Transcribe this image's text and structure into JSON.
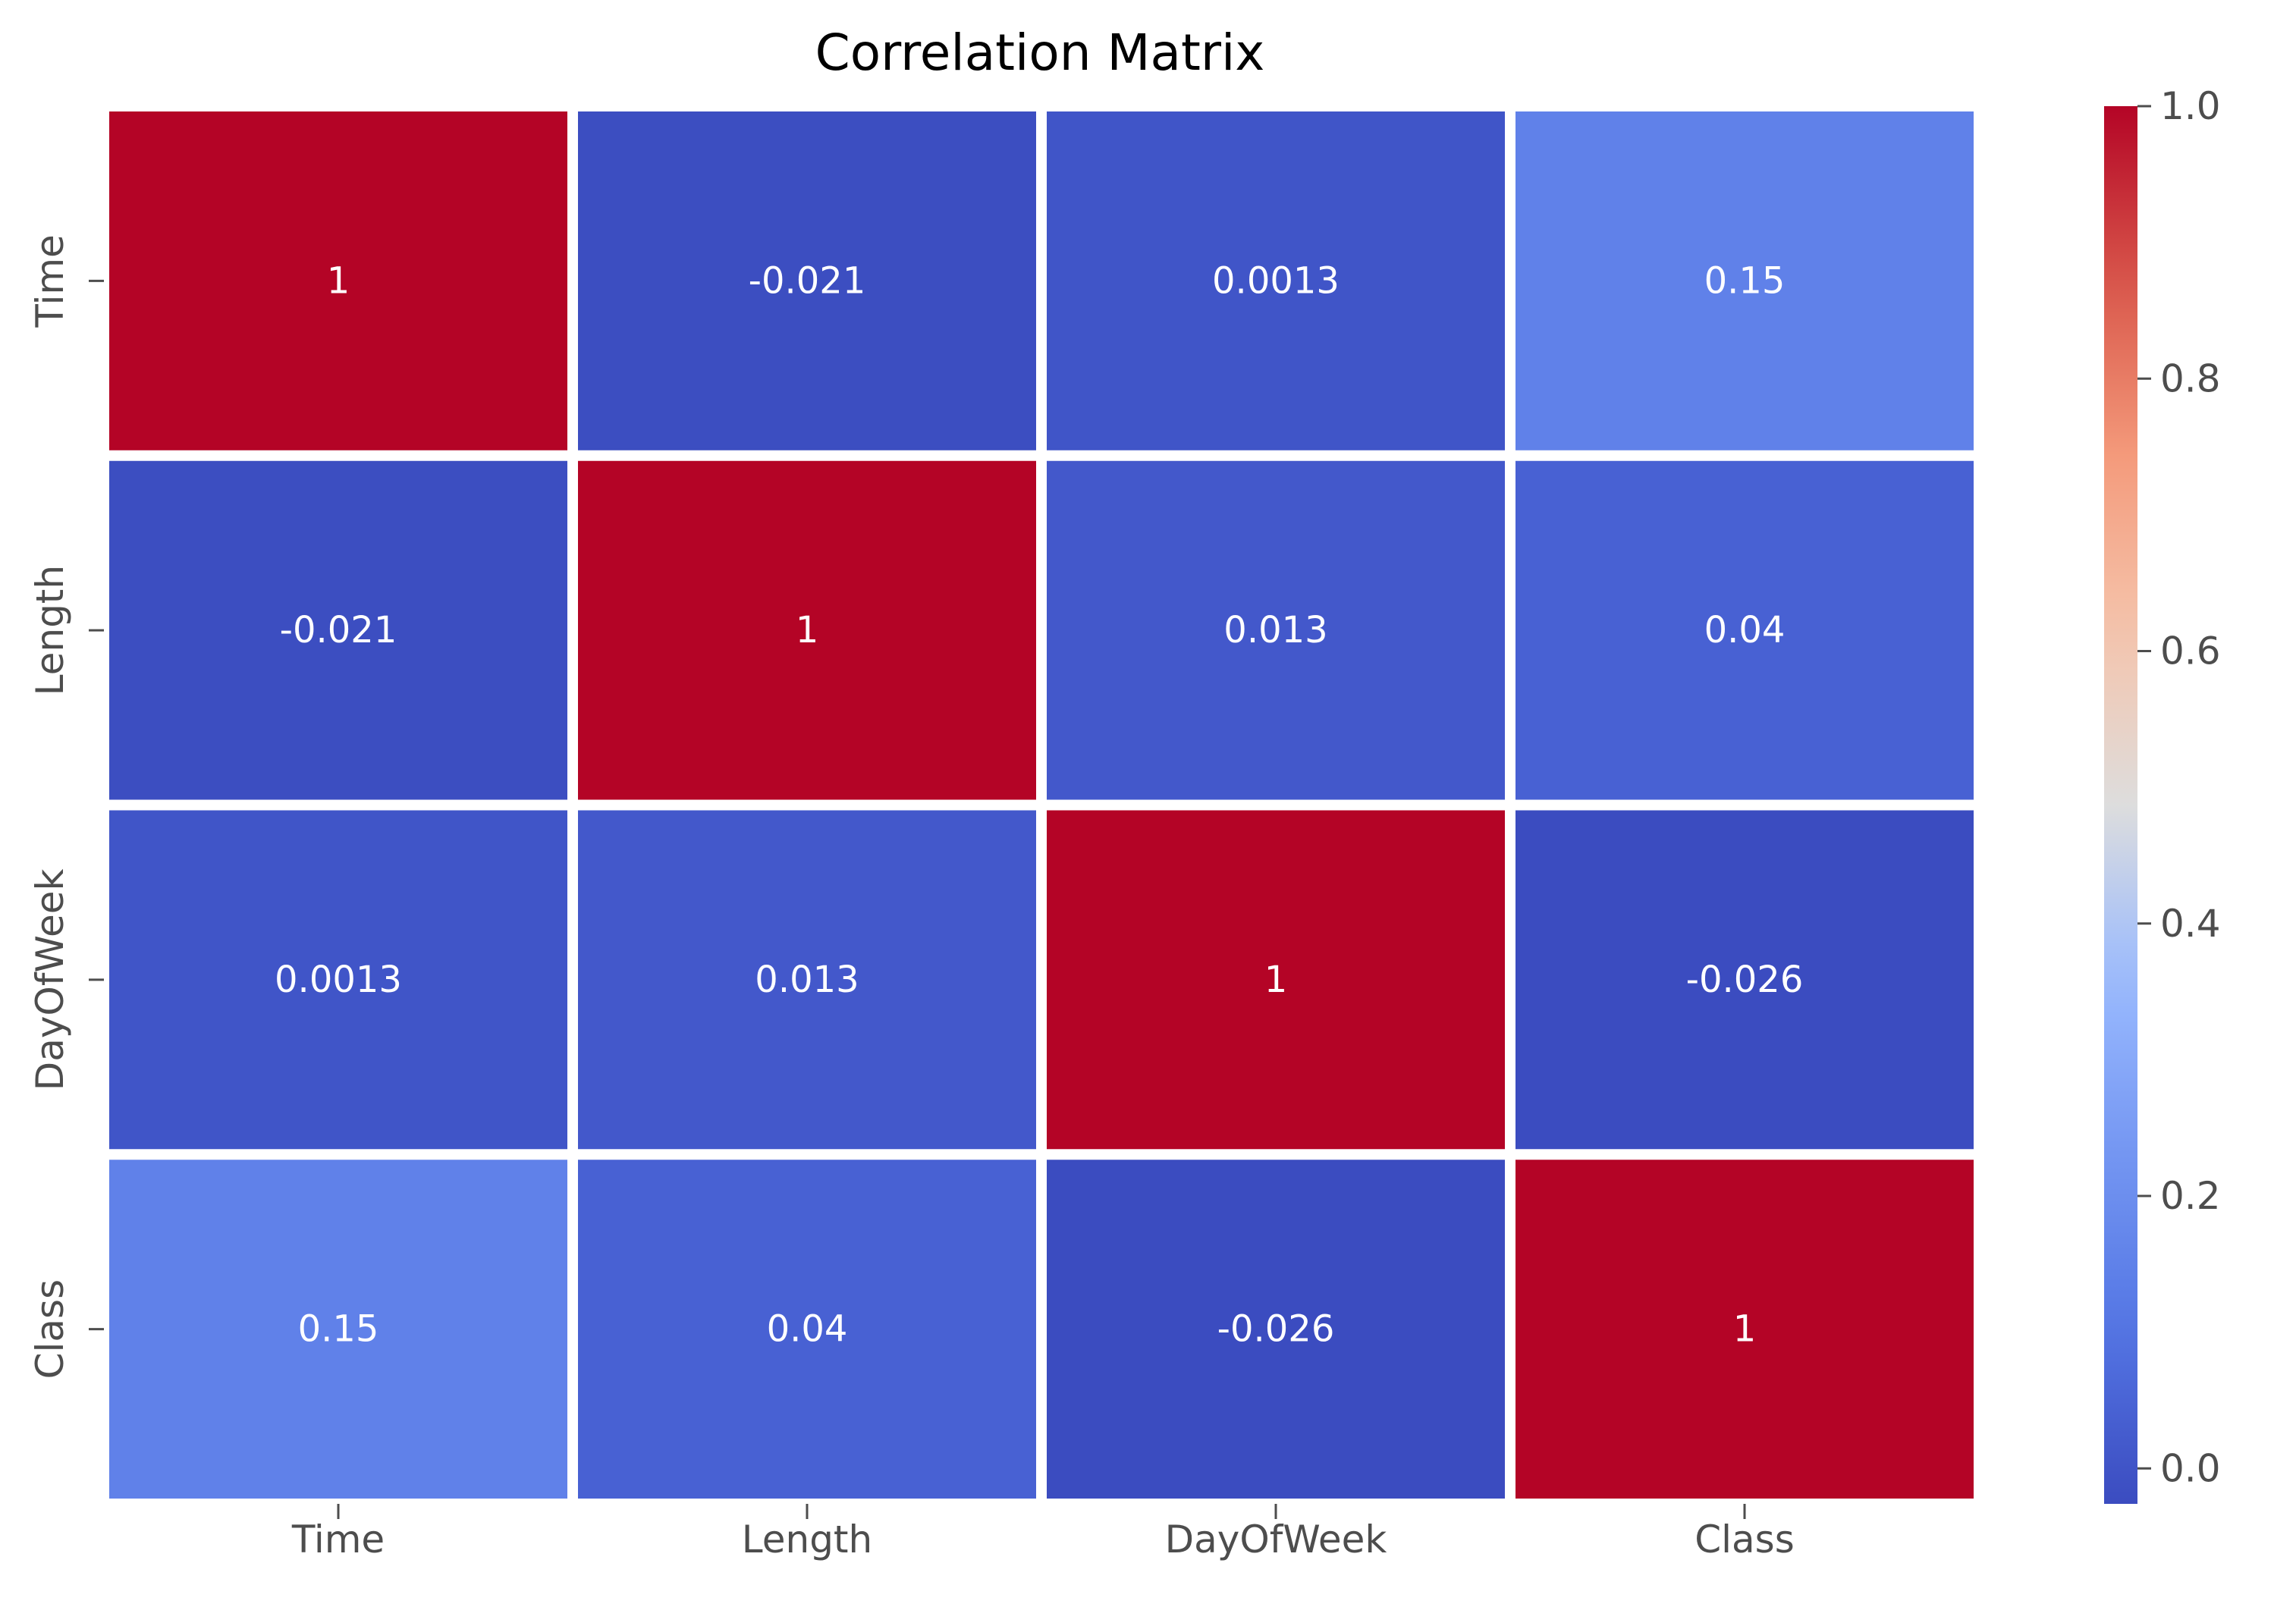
{
  "chart_data": {
    "type": "heatmap",
    "title": "Correlation Matrix",
    "xlabel": "",
    "ylabel": "",
    "x_categories": [
      "Time",
      "Length",
      "DayOfWeek",
      "Class"
    ],
    "y_categories": [
      "Time",
      "Length",
      "DayOfWeek",
      "Class"
    ],
    "values": [
      [
        1,
        -0.021,
        0.0013,
        0.15
      ],
      [
        -0.021,
        1,
        0.013,
        0.04
      ],
      [
        0.0013,
        0.013,
        1,
        -0.026
      ],
      [
        0.15,
        0.04,
        -0.026,
        1
      ]
    ],
    "annotations": [
      [
        "1",
        "-0.021",
        "0.0013",
        "0.15"
      ],
      [
        "-0.021",
        "1",
        "0.013",
        "0.04"
      ],
      [
        "0.0013",
        "0.013",
        "1",
        "-0.026"
      ],
      [
        "0.15",
        "0.04",
        "-0.026",
        "1"
      ]
    ],
    "colormap": "coolwarm",
    "colorbar": {
      "range": [
        -0.026,
        1.0
      ],
      "ticks": [
        0.0,
        0.2,
        0.4,
        0.6,
        0.8,
        1.0
      ],
      "tick_labels": [
        "0.0",
        "0.2",
        "0.4",
        "0.6",
        "0.8",
        "1.0"
      ],
      "position": "right"
    },
    "grid": false,
    "cell_separator_color": "#ffffff",
    "annotation_color": "#ffffff",
    "tick_label_color": "#4d4d4d",
    "title_color": "#000000"
  }
}
